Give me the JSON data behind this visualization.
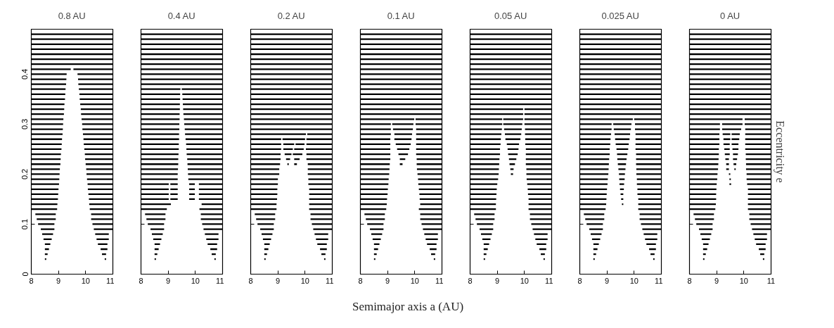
{
  "chart_data": [
    {
      "type": "bar",
      "orientation": "horizontal",
      "title": "0.8 AU",
      "xlim": [
        8,
        11
      ],
      "xticks": [
        8,
        9,
        10,
        11
      ],
      "ylim": [
        0,
        0.49
      ],
      "yticks": [
        0,
        0.1,
        0.2,
        0.3,
        0.4
      ],
      "series": [
        {
          "color": "#000000",
          "x": [
            0.48,
            0.47,
            0.46,
            0.45,
            0.44,
            0.43,
            0.42,
            0.41,
            0.4,
            0.39,
            0.38,
            0.37,
            0.36,
            0.35,
            0.34,
            0.33,
            0.32,
            0.31,
            0.3,
            0.29,
            0.28,
            0.27,
            0.26,
            0.25,
            0.24,
            0.23,
            0.22,
            0.21,
            0.2,
            0.19,
            0.18,
            0.17,
            0.16,
            0.15,
            0.14,
            0.13,
            0.12,
            0.11,
            0.1,
            0.09,
            0.08,
            0.07,
            0.06,
            0.05,
            0.04,
            0.03
          ],
          "base": [
            8,
            8,
            8,
            8,
            8,
            8,
            8,
            8,
            8,
            8,
            8,
            8,
            8,
            8,
            8,
            8,
            8,
            8,
            8,
            8,
            8,
            8,
            8,
            8,
            8,
            8,
            8,
            8,
            8,
            8,
            8,
            8,
            8,
            8,
            8,
            8,
            8.15,
            8.2,
            8.25,
            8.35,
            8.4,
            8.45,
            8.5,
            8.5,
            8.5,
            8.5
          ],
          "values": [
            3,
            3,
            3,
            3,
            3,
            3,
            3,
            1.45,
            1.3,
            1.29,
            1.28,
            1.26,
            1.25,
            1.24,
            1.22,
            1.21,
            1.2,
            1.18,
            1.17,
            1.16,
            1.15,
            1.13,
            1.12,
            1.11,
            1.09,
            1.08,
            1.07,
            1.05,
            1.04,
            1.03,
            1.02,
            1.0,
            0.99,
            0.98,
            0.96,
            0.95,
            0.75,
            0.7,
            0.6,
            0.5,
            0.4,
            0.3,
            0.2,
            0.15,
            0.1,
            0.05
          ]
        },
        {
          "color": "#000000",
          "x": [
            0.41,
            0.4,
            0.39,
            0.38,
            0.37,
            0.36,
            0.35,
            0.34,
            0.33,
            0.32,
            0.31,
            0.3,
            0.29,
            0.28,
            0.27,
            0.26,
            0.25,
            0.24,
            0.23,
            0.22,
            0.21,
            0.2,
            0.19,
            0.18,
            0.17,
            0.16,
            0.15,
            0.14,
            0.13,
            0.12,
            0.11,
            0.1,
            0.09,
            0.08,
            0.07,
            0.06,
            0.05,
            0.04,
            0.03
          ],
          "base": [
            9.55,
            9.7,
            9.72,
            9.73,
            9.75,
            9.77,
            9.78,
            9.8,
            9.82,
            9.83,
            9.85,
            9.87,
            9.88,
            9.9,
            9.92,
            9.93,
            9.95,
            9.97,
            9.98,
            10.0,
            10.02,
            10.03,
            10.05,
            10.07,
            10.08,
            10.1,
            10.12,
            10.13,
            10.15,
            10.2,
            10.2,
            10.25,
            10.3,
            10.35,
            10.4,
            10.45,
            10.55,
            10.6,
            10.7
          ],
          "values": [
            1.45,
            1.3,
            1.28,
            1.27,
            1.25,
            1.23,
            1.22,
            1.2,
            1.18,
            1.17,
            1.15,
            1.13,
            1.12,
            1.1,
            1.08,
            1.07,
            1.05,
            1.03,
            1.02,
            1.0,
            0.98,
            0.97,
            0.95,
            0.93,
            0.92,
            0.9,
            0.88,
            0.87,
            0.85,
            0.8,
            0.8,
            0.75,
            0.7,
            0.5,
            0.45,
            0.35,
            0.25,
            0.15,
            0.05
          ]
        }
      ]
    },
    {
      "type": "bar",
      "orientation": "horizontal",
      "title": "0.4 AU",
      "xlim": [
        8,
        11
      ],
      "xticks": [
        8,
        9,
        10,
        11
      ],
      "ylim": [
        0,
        0.49
      ],
      "yticks": [
        0,
        0.1,
        0.2,
        0.3,
        0.4
      ],
      "tick_labels": "x",
      "series": [
        {
          "color": "#000000",
          "x": [
            0.48,
            0.47,
            0.46,
            0.45,
            0.44,
            0.43,
            0.42,
            0.41,
            0.4,
            0.39,
            0.38,
            0.37,
            0.36,
            0.35,
            0.34,
            0.33,
            0.32,
            0.31,
            0.3,
            0.29,
            0.28,
            0.27,
            0.26,
            0.25,
            0.24,
            0.23,
            0.22,
            0.21,
            0.2,
            0.19,
            0.18,
            0.17,
            0.16,
            0.15,
            0.14,
            0.13,
            0.12,
            0.11,
            0.1,
            0.09,
            0.08,
            0.07,
            0.06,
            0.05,
            0.04,
            0.03
          ],
          "base": [
            8,
            8,
            8,
            8,
            8,
            8,
            8,
            8,
            8,
            8,
            8,
            8,
            8,
            8,
            8,
            8,
            8,
            8,
            8,
            8,
            8,
            8,
            8,
            8,
            8,
            8,
            8,
            8,
            8,
            8,
            8,
            8,
            8,
            8,
            8,
            8,
            8.15,
            8.2,
            8.25,
            8.35,
            8.4,
            8.45,
            8.5,
            8.5,
            8.5,
            8.5
          ],
          "values": [
            3,
            3,
            3,
            3,
            3,
            3,
            3,
            3,
            3,
            3,
            3,
            1.45,
            1.44,
            1.44,
            1.43,
            1.43,
            1.42,
            1.42,
            1.41,
            1.41,
            1.4,
            1.4,
            1.39,
            1.39,
            1.38,
            1.37,
            1.37,
            1.36,
            1.35,
            1.35,
            1.02,
            1.02,
            1.02,
            1.02,
            1.1,
            0.95,
            0.75,
            0.7,
            0.6,
            0.5,
            0.4,
            0.3,
            0.2,
            0.15,
            0.1,
            0.05
          ]
        },
        {
          "color": "#000000",
          "x": [
            0.37,
            0.36,
            0.35,
            0.34,
            0.33,
            0.32,
            0.31,
            0.3,
            0.29,
            0.28,
            0.27,
            0.26,
            0.25,
            0.24,
            0.23,
            0.22,
            0.21,
            0.2,
            0.19,
            0.18,
            0.17,
            0.16,
            0.15,
            0.14,
            0.13,
            0.12,
            0.11,
            0.1,
            0.09,
            0.08,
            0.07,
            0.06,
            0.05,
            0.04,
            0.03
          ],
          "base": [
            9.5,
            9.52,
            9.53,
            9.54,
            9.55,
            9.56,
            9.58,
            9.59,
            9.61,
            9.62,
            9.64,
            9.66,
            9.67,
            9.68,
            9.7,
            9.71,
            9.72,
            9.73,
            9.74,
            10.13,
            10.13,
            10.13,
            10.13,
            10.23,
            10.15,
            10.2,
            10.2,
            10.25,
            10.3,
            10.35,
            10.4,
            10.45,
            10.55,
            10.6,
            10.7
          ],
          "values": [
            1.5,
            1.48,
            1.47,
            1.46,
            1.45,
            1.44,
            1.42,
            1.41,
            1.39,
            1.38,
            1.36,
            1.34,
            1.33,
            1.32,
            1.3,
            1.29,
            1.28,
            1.27,
            1.26,
            0.87,
            0.87,
            0.87,
            0.87,
            0.77,
            0.85,
            0.8,
            0.8,
            0.75,
            0.7,
            0.5,
            0.45,
            0.35,
            0.25,
            0.15,
            0.05
          ]
        },
        {
          "color": "#000000",
          "x": [
            0.18,
            0.17,
            0.16,
            0.15
          ],
          "base": [
            9.08,
            9.08,
            9.08,
            9.08
          ],
          "values": [
            0.27,
            0.27,
            0.27,
            0.27
          ]
        },
        {
          "color": "#000000",
          "x": [
            0.18,
            0.17,
            0.16,
            0.15
          ],
          "base": [
            9.77,
            9.77,
            9.77,
            9.77
          ],
          "values": [
            0.21,
            0.21,
            0.21,
            0.21
          ]
        }
      ]
    },
    {
      "type": "bar",
      "orientation": "horizontal",
      "title": "0.2 AU",
      "xlim": [
        8,
        11
      ],
      "xticks": [
        8,
        9,
        10,
        11
      ],
      "ylim": [
        0,
        0.49
      ],
      "yticks": [
        0,
        0.1,
        0.2,
        0.3,
        0.4
      ],
      "tick_labels": "x",
      "series": [
        {
          "color": "#000000",
          "x": [
            0.48,
            0.47,
            0.46,
            0.45,
            0.44,
            0.43,
            0.42,
            0.41,
            0.4,
            0.39,
            0.38,
            0.37,
            0.36,
            0.35,
            0.34,
            0.33,
            0.32,
            0.31,
            0.3,
            0.29,
            0.28,
            0.27,
            0.26,
            0.25,
            0.24,
            0.23,
            0.22,
            0.21,
            0.2,
            0.19,
            0.18,
            0.17,
            0.16,
            0.15,
            0.14,
            0.13,
            0.12,
            0.11,
            0.1,
            0.09,
            0.08,
            0.07,
            0.06,
            0.05,
            0.04,
            0.03
          ],
          "base": [
            8,
            8,
            8,
            8,
            8,
            8,
            8,
            8,
            8,
            8,
            8,
            8,
            8,
            8,
            8,
            8,
            8,
            8,
            8,
            8,
            8,
            8,
            8,
            8,
            8,
            8,
            8,
            8,
            8,
            8,
            8,
            8,
            8,
            8,
            8,
            8,
            8.15,
            8.2,
            8.25,
            8.35,
            8.4,
            8.45,
            8.5,
            8.5,
            8.5,
            8.5
          ],
          "values": [
            3,
            3,
            3,
            3,
            3,
            3,
            3,
            3,
            3,
            3,
            3,
            3,
            3,
            3,
            3,
            3,
            3,
            3,
            3,
            3,
            2.03,
            1.12,
            1.12,
            1.12,
            1.1,
            1.1,
            1.08,
            1.05,
            1.05,
            1.0,
            1.0,
            0.98,
            0.98,
            0.97,
            0.95,
            0.95,
            0.75,
            0.7,
            0.6,
            0.5,
            0.4,
            0.3,
            0.2,
            0.15,
            0.1,
            0.05
          ]
        },
        {
          "color": "#000000",
          "x": [
            0.28,
            0.27,
            0.26,
            0.25,
            0.24,
            0.23,
            0.22,
            0.21,
            0.2,
            0.19,
            0.18,
            0.17,
            0.16,
            0.15,
            0.14,
            0.13,
            0.12,
            0.11,
            0.1,
            0.09,
            0.08,
            0.07,
            0.06,
            0.05,
            0.04,
            0.03
          ],
          "base": [
            10.08,
            10.05,
            10.05,
            10.03,
            10.05,
            10.05,
            10.1,
            10.1,
            10.1,
            10.12,
            10.12,
            10.15,
            10.15,
            10.15,
            10.15,
            10.15,
            10.2,
            10.2,
            10.25,
            10.3,
            10.35,
            10.4,
            10.45,
            10.55,
            10.6,
            10.7
          ],
          "values": [
            0.92,
            0.95,
            0.95,
            0.97,
            0.95,
            0.95,
            0.9,
            0.9,
            0.9,
            0.88,
            0.88,
            0.85,
            0.85,
            0.85,
            0.85,
            0.85,
            0.8,
            0.8,
            0.75,
            0.7,
            0.5,
            0.45,
            0.35,
            0.25,
            0.15,
            0.05
          ]
        },
        {
          "color": "#000000",
          "x": [
            0.27,
            0.26,
            0.25,
            0.24,
            0.23,
            0.22
          ],
          "base": [
            9.17,
            9.2,
            9.2,
            9.25,
            9.3,
            9.35
          ],
          "values": [
            0.83,
            0.4,
            0.35,
            0.25,
            0.15,
            0.05
          ]
        },
        {
          "color": "#000000",
          "x": [
            0.26,
            0.25,
            0.24,
            0.23,
            0.22
          ],
          "base": [
            9.65,
            9.6,
            9.55,
            9.6,
            9.6
          ],
          "values": [
            0.33,
            0.35,
            0.35,
            0.2,
            0.1
          ]
        }
      ]
    },
    {
      "type": "bar",
      "orientation": "horizontal",
      "title": "0.1 AU",
      "xlabel": "Semimajor axis a (AU)",
      "xlim": [
        8,
        11
      ],
      "xticks": [
        8,
        9,
        10,
        11
      ],
      "ylim": [
        0,
        0.49
      ],
      "yticks": [
        0,
        0.1,
        0.2,
        0.3,
        0.4
      ],
      "tick_labels": "x",
      "series": [
        {
          "color": "#000000",
          "x": [
            0.48,
            0.47,
            0.46,
            0.45,
            0.44,
            0.43,
            0.42,
            0.41,
            0.4,
            0.39,
            0.38,
            0.37,
            0.36,
            0.35,
            0.34,
            0.33,
            0.32,
            0.31,
            0.3,
            0.29,
            0.28,
            0.27,
            0.26,
            0.25,
            0.24,
            0.23,
            0.22,
            0.21,
            0.2,
            0.19,
            0.18,
            0.17,
            0.16,
            0.15,
            0.14,
            0.13,
            0.12,
            0.11,
            0.1,
            0.09,
            0.08,
            0.07,
            0.06,
            0.05,
            0.04,
            0.03
          ],
          "base": [
            8,
            8,
            8,
            8,
            8,
            8,
            8,
            8,
            8,
            8,
            8,
            8,
            8,
            8,
            8,
            8,
            8,
            8,
            8,
            8,
            8,
            8,
            8,
            8,
            8,
            8,
            8,
            8,
            8,
            8,
            8,
            8,
            8,
            8,
            8,
            8,
            8.15,
            8.2,
            8.25,
            8.35,
            8.4,
            8.45,
            8.5,
            8.5,
            8.5,
            8.5
          ],
          "values": [
            3,
            3,
            3,
            3,
            3,
            3,
            3,
            3,
            3,
            3,
            3,
            3,
            3,
            3,
            3,
            3,
            3,
            1.98,
            1.12,
            1.12,
            1.12,
            1.1,
            1.1,
            1.1,
            1.1,
            1.1,
            1.08,
            1.07,
            1.06,
            1.04,
            1.03,
            1.01,
            1.0,
            0.98,
            0.97,
            0.95,
            0.75,
            0.7,
            0.6,
            0.5,
            0.4,
            0.3,
            0.2,
            0.15,
            0.1,
            0.05
          ]
        },
        {
          "color": "#000000",
          "x": [
            0.31,
            0.3,
            0.29,
            0.28,
            0.27,
            0.26,
            0.25,
            0.24,
            0.23,
            0.22,
            0.21,
            0.2,
            0.19,
            0.18,
            0.17,
            0.16,
            0.15,
            0.14,
            0.13,
            0.12,
            0.11,
            0.1,
            0.09,
            0.08,
            0.07,
            0.06,
            0.05,
            0.04,
            0.03
          ],
          "base": [
            10.03,
            10.03,
            10.05,
            10.05,
            10.05,
            10.05,
            10.05,
            10.05,
            10.07,
            10.07,
            10.08,
            10.1,
            10.12,
            10.13,
            10.15,
            10.17,
            10.18,
            10.2,
            10.15,
            10.2,
            10.2,
            10.25,
            10.3,
            10.35,
            10.4,
            10.45,
            10.55,
            10.6,
            10.7
          ],
          "values": [
            0.97,
            0.97,
            0.95,
            0.95,
            0.95,
            0.95,
            0.95,
            0.95,
            0.93,
            0.93,
            0.92,
            0.9,
            0.88,
            0.87,
            0.85,
            0.83,
            0.82,
            0.8,
            0.85,
            0.8,
            0.8,
            0.75,
            0.7,
            0.5,
            0.45,
            0.35,
            0.25,
            0.15,
            0.05
          ]
        },
        {
          "color": "#000000",
          "x": [
            0.3,
            0.29,
            0.28,
            0.27,
            0.26,
            0.25,
            0.24,
            0.23,
            0.22
          ],
          "base": [
            9.17,
            9.2,
            9.25,
            9.25,
            9.3,
            9.35,
            9.4,
            9.45,
            9.45
          ],
          "values": [
            0.78,
            0.73,
            0.65,
            0.63,
            0.55,
            0.45,
            0.35,
            0.2,
            0.1
          ]
        }
      ]
    },
    {
      "type": "bar",
      "orientation": "horizontal",
      "title": "0.05 AU",
      "xlim": [
        8,
        11
      ],
      "xticks": [
        8,
        9,
        10,
        11
      ],
      "ylim": [
        0,
        0.49
      ],
      "yticks": [
        0,
        0.1,
        0.2,
        0.3,
        0.4
      ],
      "tick_labels": "x",
      "series": [
        {
          "color": "#000000",
          "x": [
            0.48,
            0.47,
            0.46,
            0.45,
            0.44,
            0.43,
            0.42,
            0.41,
            0.4,
            0.39,
            0.38,
            0.37,
            0.36,
            0.35,
            0.34,
            0.33,
            0.32,
            0.31,
            0.3,
            0.29,
            0.28,
            0.27,
            0.26,
            0.25,
            0.24,
            0.23,
            0.22,
            0.21,
            0.2,
            0.19,
            0.18,
            0.17,
            0.16,
            0.15,
            0.14,
            0.13,
            0.12,
            0.11,
            0.1,
            0.09,
            0.08,
            0.07,
            0.06,
            0.05,
            0.04,
            0.03
          ],
          "base": [
            8,
            8,
            8,
            8,
            8,
            8,
            8,
            8,
            8,
            8,
            8,
            8,
            8,
            8,
            8,
            8,
            8,
            8,
            8,
            8,
            8,
            8,
            8,
            8,
            8,
            8,
            8,
            8,
            8,
            8,
            8,
            8,
            8,
            8,
            8,
            8,
            8.15,
            8.2,
            8.25,
            8.35,
            8.4,
            8.45,
            8.5,
            8.5,
            8.5,
            8.5
          ],
          "values": [
            3,
            3,
            3,
            3,
            3,
            3,
            3,
            3,
            3,
            3,
            3,
            3,
            3,
            3,
            3,
            1.95,
            1.95,
            1.18,
            1.18,
            1.17,
            1.15,
            1.13,
            1.12,
            1.1,
            1.1,
            1.08,
            1.07,
            1.06,
            1.05,
            1.03,
            1.0,
            0.98,
            0.97,
            0.96,
            0.95,
            0.95,
            0.75,
            0.7,
            0.6,
            0.5,
            0.4,
            0.3,
            0.2,
            0.15,
            0.1,
            0.05
          ]
        },
        {
          "color": "#000000",
          "x": [
            0.33,
            0.32,
            0.31,
            0.3,
            0.29,
            0.28,
            0.27,
            0.26,
            0.25,
            0.24,
            0.23,
            0.22,
            0.21,
            0.2,
            0.19,
            0.18,
            0.17,
            0.16,
            0.15,
            0.14,
            0.13,
            0.12,
            0.11,
            0.1,
            0.09,
            0.08,
            0.07,
            0.06,
            0.05,
            0.04,
            0.03
          ],
          "base": [
            10.0,
            10.0,
            10.0,
            10.0,
            10.02,
            10.02,
            10.03,
            10.03,
            10.05,
            10.05,
            10.05,
            10.05,
            10.07,
            10.07,
            10.08,
            10.1,
            10.12,
            10.13,
            10.15,
            10.15,
            10.15,
            10.2,
            10.2,
            10.25,
            10.3,
            10.35,
            10.4,
            10.45,
            10.55,
            10.6,
            10.7
          ],
          "values": [
            1.0,
            1.0,
            1.0,
            1.0,
            0.98,
            0.98,
            0.97,
            0.97,
            0.95,
            0.95,
            0.95,
            0.95,
            0.93,
            0.93,
            0.92,
            0.9,
            0.88,
            0.87,
            0.85,
            0.85,
            0.85,
            0.8,
            0.8,
            0.75,
            0.7,
            0.5,
            0.45,
            0.35,
            0.25,
            0.15,
            0.05
          ]
        },
        {
          "color": "#000000",
          "x": [
            0.31,
            0.3,
            0.29,
            0.28,
            0.27,
            0.26,
            0.25,
            0.24,
            0.23,
            0.22,
            0.21,
            0.2
          ],
          "base": [
            9.22,
            9.22,
            9.25,
            9.28,
            9.3,
            9.35,
            9.38,
            9.4,
            9.43,
            9.45,
            9.48,
            9.5
          ],
          "values": [
            0.73,
            0.7,
            0.65,
            0.6,
            0.55,
            0.45,
            0.4,
            0.35,
            0.27,
            0.2,
            0.12,
            0.08
          ]
        }
      ]
    },
    {
      "type": "bar",
      "orientation": "horizontal",
      "title": "0.025 AU",
      "xlim": [
        8,
        11
      ],
      "xticks": [
        8,
        9,
        10,
        11
      ],
      "ylim": [
        0,
        0.49
      ],
      "yticks": [
        0,
        0.1,
        0.2,
        0.3,
        0.4
      ],
      "tick_labels": "x",
      "series": [
        {
          "color": "#000000",
          "x": [
            0.48,
            0.47,
            0.46,
            0.45,
            0.44,
            0.43,
            0.42,
            0.41,
            0.4,
            0.39,
            0.38,
            0.37,
            0.36,
            0.35,
            0.34,
            0.33,
            0.32,
            0.31,
            0.3,
            0.29,
            0.28,
            0.27,
            0.26,
            0.25,
            0.24,
            0.23,
            0.22,
            0.21,
            0.2,
            0.19,
            0.18,
            0.17,
            0.16,
            0.15,
            0.14,
            0.13,
            0.12,
            0.11,
            0.1,
            0.09,
            0.08,
            0.07,
            0.06,
            0.05,
            0.04,
            0.03
          ],
          "base": [
            8,
            8,
            8,
            8,
            8,
            8,
            8,
            8,
            8,
            8,
            8,
            8,
            8,
            8,
            8,
            8,
            8,
            8,
            8,
            8,
            8,
            8,
            8,
            8,
            8,
            8,
            8,
            8,
            8,
            8,
            8,
            8,
            8,
            8,
            8,
            8,
            8.15,
            8.2,
            8.25,
            8.35,
            8.4,
            8.45,
            8.5,
            8.5,
            8.5,
            8.5
          ],
          "values": [
            3,
            3,
            3,
            3,
            3,
            3,
            3,
            3,
            3,
            3,
            3,
            3,
            3,
            3,
            3,
            3,
            3,
            1.95,
            1.17,
            1.17,
            1.15,
            1.13,
            1.12,
            1.1,
            1.1,
            1.08,
            1.07,
            1.06,
            1.05,
            1.03,
            1.02,
            1.0,
            0.99,
            0.98,
            0.97,
            0.95,
            0.75,
            0.7,
            0.6,
            0.5,
            0.4,
            0.3,
            0.2,
            0.15,
            0.1,
            0.05
          ]
        },
        {
          "color": "#000000",
          "x": [
            0.31,
            0.3,
            0.29,
            0.28,
            0.27,
            0.26,
            0.25,
            0.24,
            0.23,
            0.22,
            0.21,
            0.2,
            0.19,
            0.18,
            0.17,
            0.16,
            0.15,
            0.14,
            0.13,
            0.12,
            0.11,
            0.1,
            0.09,
            0.08,
            0.07,
            0.06,
            0.05,
            0.04,
            0.03
          ],
          "base": [
            10.0,
            10.03,
            10.03,
            10.05,
            10.05,
            10.05,
            10.05,
            10.07,
            10.07,
            10.07,
            10.08,
            10.08,
            10.1,
            10.1,
            10.12,
            10.12,
            10.15,
            10.15,
            10.15,
            10.2,
            10.2,
            10.25,
            10.3,
            10.35,
            10.4,
            10.45,
            10.55,
            10.6,
            10.7
          ],
          "values": [
            1.0,
            0.97,
            0.97,
            0.95,
            0.95,
            0.95,
            0.95,
            0.93,
            0.93,
            0.93,
            0.92,
            0.92,
            0.9,
            0.9,
            0.88,
            0.88,
            0.85,
            0.85,
            0.85,
            0.8,
            0.8,
            0.75,
            0.7,
            0.5,
            0.45,
            0.35,
            0.25,
            0.15,
            0.05
          ]
        },
        {
          "color": "#000000",
          "x": [
            0.3,
            0.29,
            0.28,
            0.27,
            0.26,
            0.25,
            0.24,
            0.23,
            0.22,
            0.21,
            0.2,
            0.19,
            0.18,
            0.17,
            0.16,
            0.15,
            0.14
          ],
          "base": [
            9.23,
            9.25,
            9.28,
            9.3,
            9.32,
            9.35,
            9.37,
            9.38,
            9.4,
            9.42,
            9.44,
            9.45,
            9.46,
            9.48,
            9.5,
            9.52,
            9.55
          ],
          "values": [
            0.67,
            0.63,
            0.57,
            0.53,
            0.48,
            0.43,
            0.38,
            0.34,
            0.3,
            0.26,
            0.22,
            0.2,
            0.17,
            0.14,
            0.1,
            0.08,
            0.05
          ]
        }
      ]
    },
    {
      "type": "bar",
      "orientation": "horizontal",
      "title": "0 AU",
      "ylabel": "Eccentricity e",
      "xlim": [
        8,
        11
      ],
      "xticks": [
        8,
        9,
        10,
        11
      ],
      "ylim": [
        0,
        0.49
      ],
      "yticks": [
        0,
        0.1,
        0.2,
        0.3,
        0.4
      ],
      "tick_labels": "x",
      "series": [
        {
          "color": "#000000",
          "x": [
            0.48,
            0.47,
            0.46,
            0.45,
            0.44,
            0.43,
            0.42,
            0.41,
            0.4,
            0.39,
            0.38,
            0.37,
            0.36,
            0.35,
            0.34,
            0.33,
            0.32,
            0.31,
            0.3,
            0.29,
            0.28,
            0.27,
            0.26,
            0.25,
            0.24,
            0.23,
            0.22,
            0.21,
            0.2,
            0.19,
            0.18,
            0.17,
            0.16,
            0.15,
            0.14,
            0.13,
            0.12,
            0.11,
            0.1,
            0.09,
            0.08,
            0.07,
            0.06,
            0.05,
            0.04,
            0.03
          ],
          "base": [
            8,
            8,
            8,
            8,
            8,
            8,
            8,
            8,
            8,
            8,
            8,
            8,
            8,
            8,
            8,
            8,
            8,
            8,
            8,
            8,
            8,
            8,
            8,
            8,
            8,
            8,
            8,
            8,
            8,
            8,
            8,
            8,
            8,
            8,
            8,
            8,
            8.15,
            8.2,
            8.25,
            8.35,
            8.4,
            8.45,
            8.5,
            8.5,
            8.5,
            8.5
          ],
          "values": [
            3,
            3,
            3,
            3,
            3,
            3,
            3,
            3,
            3,
            3,
            3,
            3,
            3,
            3,
            3,
            3,
            3,
            1.95,
            1.12,
            1.12,
            1.1,
            1.1,
            1.1,
            1.08,
            1.08,
            1.07,
            1.06,
            1.05,
            1.03,
            1.02,
            1.0,
            0.99,
            0.98,
            0.98,
            0.97,
            0.95,
            0.75,
            0.7,
            0.6,
            0.5,
            0.4,
            0.3,
            0.2,
            0.15,
            0.1,
            0.05
          ]
        },
        {
          "color": "#000000",
          "x": [
            0.31,
            0.3,
            0.29,
            0.28,
            0.27,
            0.26,
            0.25,
            0.24,
            0.23,
            0.22,
            0.21,
            0.2,
            0.19,
            0.18,
            0.17,
            0.16,
            0.15,
            0.14,
            0.13,
            0.12,
            0.11,
            0.1,
            0.09,
            0.08,
            0.07,
            0.06,
            0.05,
            0.04,
            0.03
          ],
          "base": [
            10.03,
            10.03,
            10.05,
            10.05,
            10.05,
            10.05,
            10.05,
            10.07,
            10.07,
            10.08,
            10.08,
            10.1,
            10.1,
            10.12,
            10.15,
            10.15,
            10.15,
            10.15,
            10.15,
            10.2,
            10.2,
            10.25,
            10.3,
            10.35,
            10.4,
            10.45,
            10.55,
            10.6,
            10.7
          ],
          "values": [
            0.97,
            0.97,
            0.95,
            0.95,
            0.95,
            0.95,
            0.95,
            0.93,
            0.93,
            0.92,
            0.92,
            0.9,
            0.9,
            0.88,
            0.85,
            0.85,
            0.85,
            0.85,
            0.85,
            0.8,
            0.8,
            0.75,
            0.7,
            0.5,
            0.45,
            0.35,
            0.25,
            0.15,
            0.05
          ]
        },
        {
          "color": "#000000",
          "x": [
            0.3,
            0.29,
            0.28,
            0.27,
            0.26,
            0.25,
            0.24,
            0.23,
            0.22,
            0.21,
            0.2,
            0.19,
            0.18
          ],
          "base": [
            9.2,
            9.2,
            9.22,
            9.25,
            9.25,
            9.28,
            9.3,
            9.32,
            9.35,
            9.35,
            9.45,
            9.47,
            9.47
          ],
          "values": [
            0.75,
            0.7,
            0.28,
            0.25,
            0.23,
            0.2,
            0.18,
            0.13,
            0.1,
            0.1,
            0.05,
            0.05,
            0.06
          ]
        },
        {
          "color": "#000000",
          "x": [
            0.28,
            0.27,
            0.26,
            0.25,
            0.24,
            0.23,
            0.22,
            0.21
          ],
          "base": [
            9.55,
            9.55,
            9.55,
            9.58,
            9.6,
            9.6,
            9.62,
            9.65
          ],
          "values": [
            0.3,
            0.28,
            0.25,
            0.22,
            0.18,
            0.15,
            0.1,
            0.05
          ]
        }
      ]
    }
  ]
}
